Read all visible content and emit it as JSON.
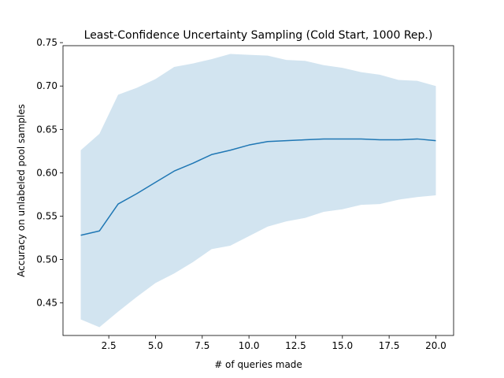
{
  "chart_data": {
    "type": "line",
    "title": "Least-Confidence Uncertainty Sampling (Cold Start, 1000 Rep.)",
    "xlabel": "# of queries made",
    "ylabel": "Accuracy on unlabeled pool samples",
    "xlim": [
      0.05,
      20.95
    ],
    "ylim": [
      0.4125,
      0.7465
    ],
    "xticks": [
      2.5,
      5.0,
      7.5,
      10.0,
      12.5,
      15.0,
      17.5,
      20.0
    ],
    "xtick_labels": [
      "2.5",
      "5.0",
      "7.5",
      "10.0",
      "12.5",
      "15.0",
      "17.5",
      "20.0"
    ],
    "yticks": [
      0.45,
      0.5,
      0.55,
      0.6,
      0.65,
      0.7,
      0.75
    ],
    "ytick_labels": [
      "0.45",
      "0.50",
      "0.55",
      "0.60",
      "0.65",
      "0.70",
      "0.75"
    ],
    "grid": false,
    "colors": {
      "line": "#1f77b4",
      "band": "#1f77b4"
    },
    "x": [
      1,
      2,
      3,
      4,
      5,
      6,
      7,
      8,
      9,
      10,
      11,
      12,
      13,
      14,
      15,
      16,
      17,
      18,
      19,
      20
    ],
    "series": [
      {
        "values": [
          0.528,
          0.533,
          0.564,
          0.576,
          0.589,
          0.602,
          0.611,
          0.621,
          0.626,
          0.632,
          0.636,
          0.637,
          0.638,
          0.639,
          0.639,
          0.639,
          0.638,
          0.638,
          0.639,
          0.637
        ],
        "lower": [
          0.431,
          0.422,
          0.44,
          0.457,
          0.473,
          0.484,
          0.497,
          0.512,
          0.516,
          0.527,
          0.538,
          0.544,
          0.548,
          0.555,
          0.558,
          0.563,
          0.564,
          0.569,
          0.572,
          0.574
        ],
        "upper": [
          0.626,
          0.645,
          0.69,
          0.698,
          0.708,
          0.722,
          0.726,
          0.731,
          0.737,
          0.736,
          0.735,
          0.73,
          0.729,
          0.724,
          0.721,
          0.716,
          0.713,
          0.707,
          0.706,
          0.7
        ]
      }
    ]
  }
}
